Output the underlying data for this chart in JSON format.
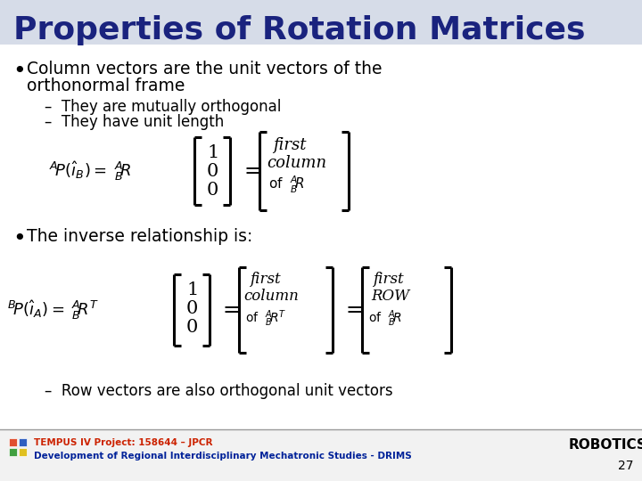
{
  "title": "Properties of Rotation Matrices",
  "title_color": "#1a237e",
  "slide_bg": "#ffffff",
  "title_bg": "#d6dce8",
  "footer1": "TEMPUS IV Project: 158644 – JPCR",
  "footer2": "Development of Regional Interdisciplinary Mechatronic Studies - DRIMS",
  "footer_right": "ROBOTICS",
  "page_num": "27",
  "logo_colors": [
    "#e05030",
    "#3060c0",
    "#40a040",
    "#e0c020"
  ]
}
